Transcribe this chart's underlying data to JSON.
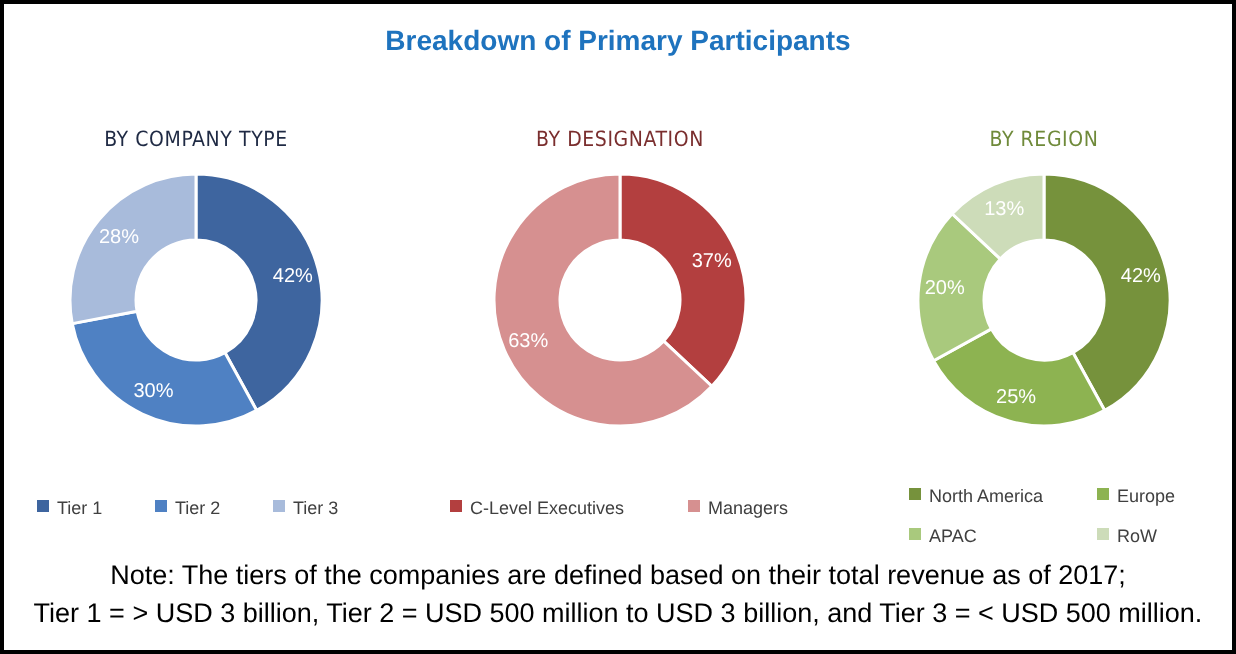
{
  "chart_data": [
    {
      "type": "donut",
      "subtitle": "BY COMPANY TYPE",
      "categories": [
        "Tier 1",
        "Tier 2",
        "Tier 3"
      ],
      "values": [
        42,
        30,
        28
      ],
      "value_labels": [
        "42%",
        "30%",
        "28%"
      ],
      "colors": [
        "#3e659f",
        "#4f81c3",
        "#a8bbdb"
      ],
      "legend": "bottom"
    },
    {
      "type": "donut",
      "title": "Breakdown of Primary Participants",
      "subtitle": "BY DESIGNATION",
      "categories": [
        "C-Level Executives",
        "Managers"
      ],
      "values": [
        37,
        63
      ],
      "value_labels": [
        "37%",
        "63%"
      ],
      "colors": [
        "#b33f3f",
        "#d69090"
      ],
      "legend": "bottom"
    },
    {
      "type": "donut",
      "subtitle": "BY REGION",
      "categories": [
        "North America",
        "Europe",
        "APAC",
        "RoW"
      ],
      "values": [
        42,
        25,
        20,
        13
      ],
      "value_labels": [
        "42%",
        "25%",
        "20%",
        "13%"
      ],
      "colors": [
        "#76923c",
        "#8db351",
        "#a9c97d",
        "#cddcb9"
      ],
      "legend": "bottom",
      "annotations": [
        "Note: The tiers of the companies are defined based on their total revenue as of 2017;",
        "Tier 1 = > USD 3 billion, Tier 2 = USD 500 million to USD 3 billion, and Tier 3 = < USD 500 million."
      ]
    }
  ]
}
